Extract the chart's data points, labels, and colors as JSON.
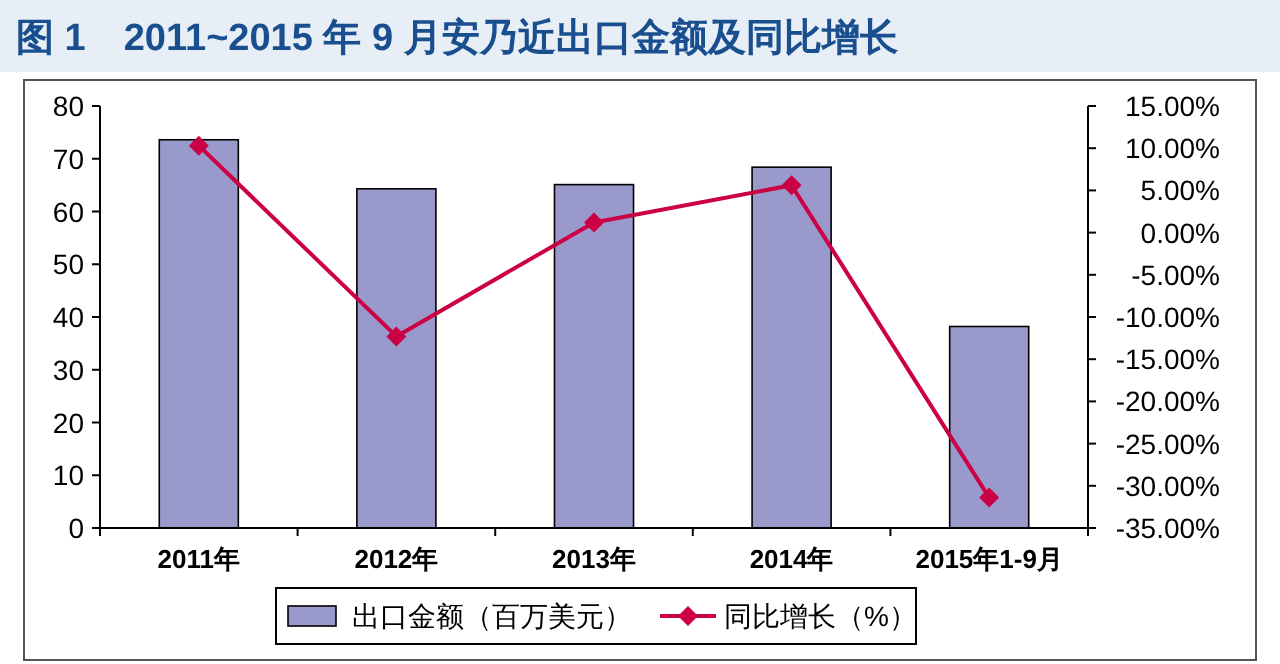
{
  "chart_data": {
    "type": "bar",
    "title": "图 1　2011~2015 年 9 月安乃近出口金额及同比增长",
    "categories": [
      "2011年",
      "2012年",
      "2013年",
      "2014年",
      "2015年1-9月"
    ],
    "series": [
      {
        "name": "出口金额（百万美元）",
        "color": "#9999cc",
        "values": [
          73.6,
          64.3,
          65.1,
          68.4,
          38.2
        ]
      },
      {
        "name": "同比增长（%）",
        "type": "line",
        "axis": "y2",
        "color": "#cc0044",
        "marker": "diamond",
        "values": [
          10.3,
          -12.3,
          1.2,
          5.6,
          -31.4
        ]
      }
    ],
    "ylim": [
      0,
      80
    ],
    "yticks": [
      0,
      10,
      20,
      30,
      40,
      50,
      60,
      70,
      80
    ],
    "y2lim": [
      -35,
      15
    ],
    "y2ticks": [
      {
        "value": -35,
        "label": "-35.00%"
      },
      {
        "value": -30,
        "label": "-30.00%"
      },
      {
        "value": -25,
        "label": "-25.00%"
      },
      {
        "value": -20,
        "label": "-20.00%"
      },
      {
        "value": -15,
        "label": "-15.00%"
      },
      {
        "value": -10,
        "label": "-10.00%"
      },
      {
        "value": -5,
        "label": "-5.00%"
      },
      {
        "value": 0,
        "label": "0.00%"
      },
      {
        "value": 5,
        "label": "5.00%"
      },
      {
        "value": 10,
        "label": "10.00%"
      },
      {
        "value": 15,
        "label": "15.00%"
      }
    ],
    "legend": "bottom",
    "grid": false
  }
}
